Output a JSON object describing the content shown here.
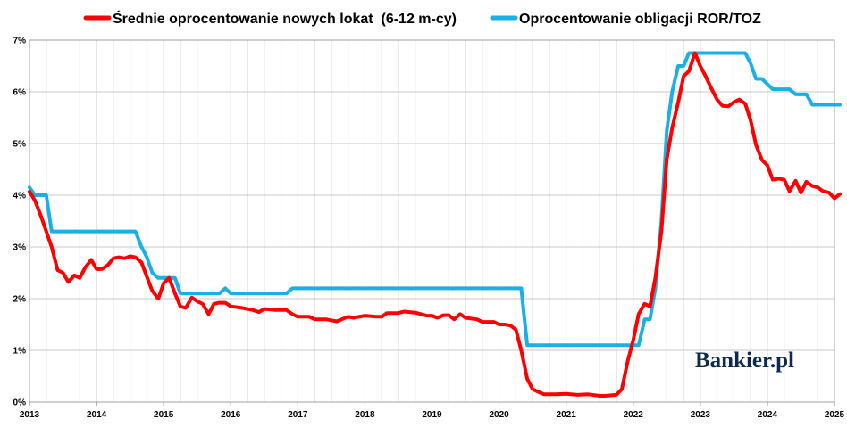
{
  "chart_data": {
    "type": "line",
    "ylim": [
      0,
      7
    ],
    "xlim": [
      2013,
      2025
    ],
    "y_ticks": [
      0,
      1,
      2,
      3,
      4,
      5,
      6,
      7
    ],
    "y_tick_labels": [
      "0%",
      "1%",
      "2%",
      "3%",
      "4%",
      "5%",
      "6%",
      "7%"
    ],
    "x_ticks": [
      2013,
      2014,
      2015,
      2016,
      2017,
      2018,
      2019,
      2020,
      2021,
      2022,
      2023,
      2024,
      2025
    ],
    "x_tick_labels": [
      "2013",
      "2014",
      "2015",
      "2016",
      "2017",
      "2018",
      "2019",
      "2020",
      "2021",
      "2022",
      "2023",
      "2024",
      "2025"
    ],
    "grid": true,
    "legend_position": "top",
    "series": [
      {
        "name": "Średnie oprocentowanie nowych lokat  (6-12 m-cy)",
        "color": "#ff0000",
        "points": [
          [
            2013.0,
            4.07
          ],
          [
            2013.08,
            3.9
          ],
          [
            2013.17,
            3.6
          ],
          [
            2013.25,
            3.3
          ],
          [
            2013.33,
            3.0
          ],
          [
            2013.42,
            2.55
          ],
          [
            2013.5,
            2.5
          ],
          [
            2013.58,
            2.32
          ],
          [
            2013.67,
            2.45
          ],
          [
            2013.75,
            2.4
          ],
          [
            2013.83,
            2.6
          ],
          [
            2013.92,
            2.75
          ],
          [
            2014.0,
            2.57
          ],
          [
            2014.08,
            2.57
          ],
          [
            2014.17,
            2.65
          ],
          [
            2014.25,
            2.78
          ],
          [
            2014.33,
            2.8
          ],
          [
            2014.42,
            2.78
          ],
          [
            2014.5,
            2.82
          ],
          [
            2014.58,
            2.8
          ],
          [
            2014.67,
            2.7
          ],
          [
            2014.75,
            2.42
          ],
          [
            2014.83,
            2.15
          ],
          [
            2014.92,
            2.0
          ],
          [
            2015.0,
            2.3
          ],
          [
            2015.08,
            2.4
          ],
          [
            2015.17,
            2.1
          ],
          [
            2015.25,
            1.85
          ],
          [
            2015.33,
            1.82
          ],
          [
            2015.42,
            2.02
          ],
          [
            2015.5,
            1.95
          ],
          [
            2015.58,
            1.9
          ],
          [
            2015.67,
            1.7
          ],
          [
            2015.75,
            1.9
          ],
          [
            2015.83,
            1.92
          ],
          [
            2015.92,
            1.92
          ],
          [
            2016.0,
            1.85
          ],
          [
            2016.17,
            1.82
          ],
          [
            2016.33,
            1.78
          ],
          [
            2016.42,
            1.74
          ],
          [
            2016.5,
            1.8
          ],
          [
            2016.67,
            1.78
          ],
          [
            2016.83,
            1.78
          ],
          [
            2016.92,
            1.7
          ],
          [
            2017.0,
            1.65
          ],
          [
            2017.17,
            1.65
          ],
          [
            2017.25,
            1.6
          ],
          [
            2017.42,
            1.6
          ],
          [
            2017.58,
            1.56
          ],
          [
            2017.75,
            1.65
          ],
          [
            2017.83,
            1.63
          ],
          [
            2018.0,
            1.67
          ],
          [
            2018.17,
            1.65
          ],
          [
            2018.25,
            1.65
          ],
          [
            2018.33,
            1.72
          ],
          [
            2018.5,
            1.72
          ],
          [
            2018.58,
            1.75
          ],
          [
            2018.75,
            1.73
          ],
          [
            2018.92,
            1.67
          ],
          [
            2019.0,
            1.67
          ],
          [
            2019.08,
            1.63
          ],
          [
            2019.17,
            1.68
          ],
          [
            2019.25,
            1.68
          ],
          [
            2019.33,
            1.6
          ],
          [
            2019.42,
            1.7
          ],
          [
            2019.5,
            1.63
          ],
          [
            2019.67,
            1.6
          ],
          [
            2019.75,
            1.55
          ],
          [
            2019.92,
            1.55
          ],
          [
            2020.0,
            1.5
          ],
          [
            2020.08,
            1.5
          ],
          [
            2020.17,
            1.48
          ],
          [
            2020.25,
            1.4
          ],
          [
            2020.33,
            1.0
          ],
          [
            2020.42,
            0.45
          ],
          [
            2020.5,
            0.25
          ],
          [
            2020.58,
            0.2
          ],
          [
            2020.67,
            0.15
          ],
          [
            2020.83,
            0.15
          ],
          [
            2021.0,
            0.16
          ],
          [
            2021.17,
            0.14
          ],
          [
            2021.33,
            0.15
          ],
          [
            2021.5,
            0.12
          ],
          [
            2021.58,
            0.12
          ],
          [
            2021.75,
            0.14
          ],
          [
            2021.83,
            0.25
          ],
          [
            2021.92,
            0.8
          ],
          [
            2022.0,
            1.2
          ],
          [
            2022.08,
            1.7
          ],
          [
            2022.17,
            1.9
          ],
          [
            2022.25,
            1.85
          ],
          [
            2022.33,
            2.4
          ],
          [
            2022.42,
            3.3
          ],
          [
            2022.5,
            4.7
          ],
          [
            2022.58,
            5.3
          ],
          [
            2022.67,
            5.8
          ],
          [
            2022.75,
            6.3
          ],
          [
            2022.83,
            6.4
          ],
          [
            2022.92,
            6.75
          ],
          [
            2023.0,
            6.5
          ],
          [
            2023.08,
            6.3
          ],
          [
            2023.17,
            6.05
          ],
          [
            2023.25,
            5.85
          ],
          [
            2023.33,
            5.73
          ],
          [
            2023.42,
            5.72
          ],
          [
            2023.5,
            5.8
          ],
          [
            2023.58,
            5.85
          ],
          [
            2023.67,
            5.77
          ],
          [
            2023.75,
            5.45
          ],
          [
            2023.83,
            4.97
          ],
          [
            2023.92,
            4.68
          ],
          [
            2024.0,
            4.58
          ],
          [
            2024.08,
            4.3
          ],
          [
            2024.17,
            4.32
          ],
          [
            2024.25,
            4.3
          ],
          [
            2024.33,
            4.08
          ],
          [
            2024.42,
            4.28
          ],
          [
            2024.5,
            4.05
          ],
          [
            2024.58,
            4.26
          ],
          [
            2024.67,
            4.18
          ],
          [
            2024.75,
            4.15
          ],
          [
            2024.83,
            4.08
          ],
          [
            2024.92,
            4.05
          ],
          [
            2025.0,
            3.94
          ],
          [
            2025.08,
            4.02
          ]
        ]
      },
      {
        "name": "Oprocentowanie obligacji ROR/TOZ",
        "color": "#1ab0e6",
        "points": [
          [
            2013.0,
            4.15
          ],
          [
            2013.08,
            4.0
          ],
          [
            2013.25,
            4.0
          ],
          [
            2013.33,
            3.3
          ],
          [
            2014.5,
            3.3
          ],
          [
            2014.58,
            3.3
          ],
          [
            2014.67,
            3.0
          ],
          [
            2014.75,
            2.8
          ],
          [
            2014.83,
            2.5
          ],
          [
            2014.92,
            2.4
          ],
          [
            2015.0,
            2.4
          ],
          [
            2015.17,
            2.4
          ],
          [
            2015.25,
            2.1
          ],
          [
            2015.83,
            2.1
          ],
          [
            2015.92,
            2.2
          ],
          [
            2016.0,
            2.1
          ],
          [
            2016.83,
            2.1
          ],
          [
            2016.92,
            2.2
          ],
          [
            2020.33,
            2.2
          ],
          [
            2020.42,
            1.1
          ],
          [
            2022.0,
            1.1
          ],
          [
            2022.08,
            1.1
          ],
          [
            2022.17,
            1.6
          ],
          [
            2022.25,
            1.6
          ],
          [
            2022.33,
            2.2
          ],
          [
            2022.42,
            3.5
          ],
          [
            2022.5,
            5.25
          ],
          [
            2022.58,
            6.0
          ],
          [
            2022.67,
            6.5
          ],
          [
            2022.75,
            6.5
          ],
          [
            2022.83,
            6.75
          ],
          [
            2023.67,
            6.75
          ],
          [
            2023.75,
            6.55
          ],
          [
            2023.83,
            6.25
          ],
          [
            2023.92,
            6.25
          ],
          [
            2024.0,
            6.15
          ],
          [
            2024.08,
            6.05
          ],
          [
            2024.33,
            6.05
          ],
          [
            2024.42,
            5.95
          ],
          [
            2024.58,
            5.95
          ],
          [
            2024.67,
            5.75
          ],
          [
            2025.08,
            5.75
          ]
        ]
      }
    ]
  },
  "logo_text": "Bankier.pl"
}
